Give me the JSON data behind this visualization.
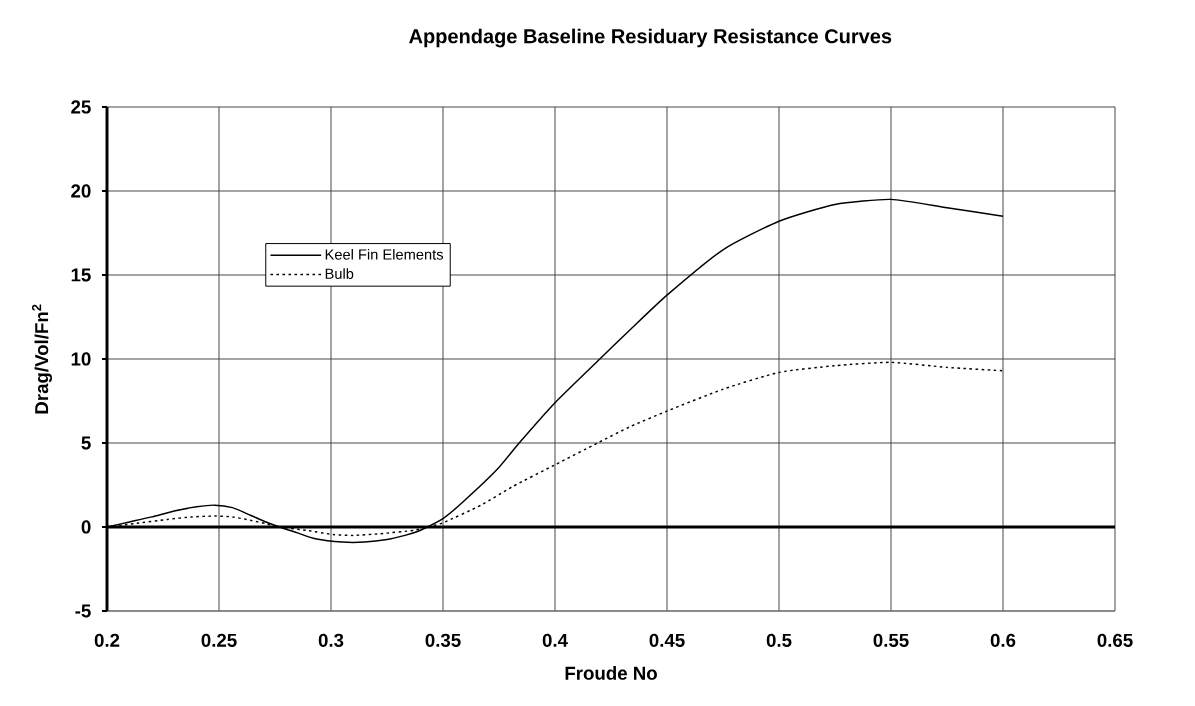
{
  "chart_data": {
    "type": "line",
    "title": "Appendage Baseline Residuary Resistance Curves",
    "xlabel": "Froude No",
    "ylabel": "Drag/Vol/Fn$^{2}$",
    "xlim": [
      0.2,
      0.65
    ],
    "ylim": [
      -5,
      25
    ],
    "xticks": [
      0.2,
      0.25,
      0.3,
      0.35,
      0.4,
      0.45,
      0.5,
      0.55,
      0.6,
      0.65
    ],
    "yticks": [
      -5,
      0,
      5,
      10,
      15,
      20,
      25
    ],
    "grid": true,
    "legend": "top left",
    "series": [
      {
        "name": "Keel Fin Elements",
        "color": "#000000",
        "line_style": "solid",
        "x": [
          0.2,
          0.21,
          0.22,
          0.23,
          0.24,
          0.248,
          0.256,
          0.264,
          0.271,
          0.277,
          0.285,
          0.293,
          0.305,
          0.315,
          0.325,
          0.333,
          0.338,
          0.343,
          0.35,
          0.359,
          0.374,
          0.384,
          0.4,
          0.42,
          0.434,
          0.45,
          0.475,
          0.5,
          0.525,
          0.55,
          0.575,
          0.6
        ],
        "values": [
          0,
          0.3,
          0.6,
          0.95,
          1.2,
          1.3,
          1.15,
          0.7,
          0.3,
          0,
          -0.35,
          -0.7,
          -0.9,
          -0.9,
          -0.75,
          -0.5,
          -0.3,
          0,
          0.5,
          1.5,
          3.4,
          5,
          7.4,
          10,
          11.8,
          13.8,
          16.5,
          18.2,
          19.2,
          19.5,
          19,
          18.5
        ]
      },
      {
        "name": "Bulb",
        "color": "#000000",
        "line_style": "dotted",
        "x": [
          0.2,
          0.212,
          0.227,
          0.238,
          0.248,
          0.256,
          0.264,
          0.271,
          0.277,
          0.289,
          0.301,
          0.31,
          0.322,
          0.337,
          0.343,
          0.35,
          0.367,
          0.381,
          0.4,
          0.419,
          0.434,
          0.45,
          0.475,
          0.5,
          0.525,
          0.55,
          0.575,
          0.6
        ],
        "values": [
          0,
          0.2,
          0.45,
          0.6,
          0.65,
          0.6,
          0.4,
          0.2,
          0,
          -0.2,
          -0.45,
          -0.5,
          -0.4,
          -0.2,
          0,
          0.25,
          1.3,
          2.4,
          3.7,
          5,
          6,
          6.9,
          8.2,
          9.2,
          9.6,
          9.8,
          9.5,
          9.3
        ]
      }
    ]
  }
}
